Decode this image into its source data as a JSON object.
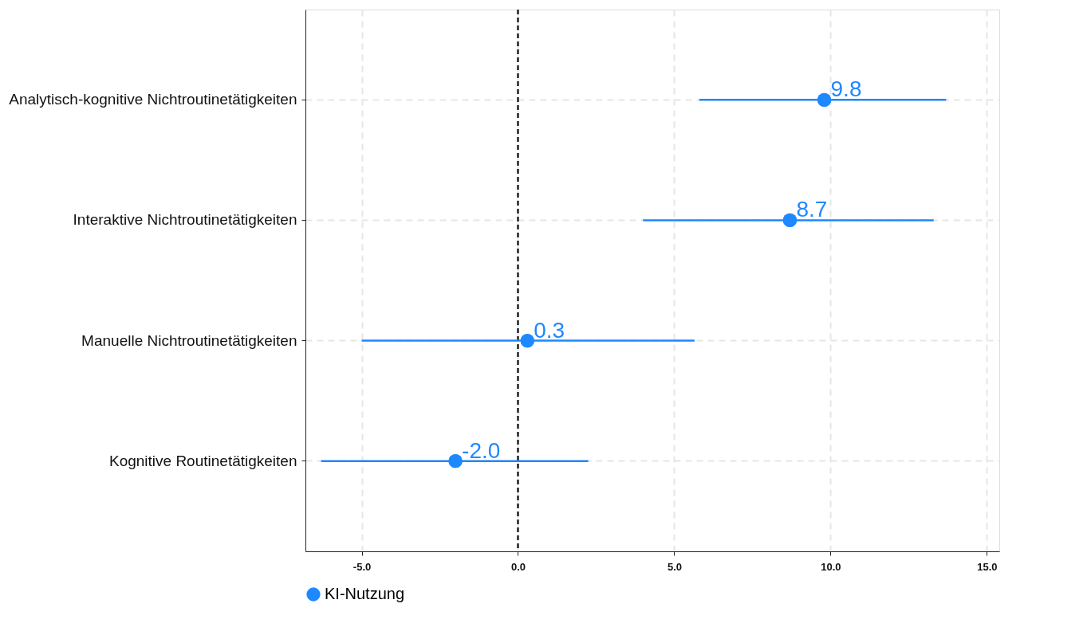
{
  "chart_data": {
    "type": "scatter",
    "orientation": "horizontal",
    "categories": [
      "Analytisch-kognitive Nichtroutinetätigkeiten",
      "Interaktive Nichtroutinetätigkeiten",
      "Manuelle Nichtroutinetätigkeiten",
      "Kognitive Routinetätigkeiten"
    ],
    "series": [
      {
        "name": "KI-Nutzung",
        "color": "#1e88ff",
        "values": [
          9.8,
          8.7,
          0.3,
          -2.0
        ],
        "errors": [
          [
            5.8,
            13.7
          ],
          [
            4.0,
            13.3
          ],
          [
            -5.0,
            5.65
          ],
          [
            -6.3,
            2.25
          ]
        ],
        "value_labels": [
          "9.8",
          "8.7",
          "0.3",
          "-2.0"
        ]
      }
    ],
    "xlim": [
      -6.8,
      15.4
    ],
    "xticks": [
      {
        "value": -5,
        "label": "-5.0"
      },
      {
        "value": 0,
        "label": "0.0"
      },
      {
        "value": 5,
        "label": "5.0"
      },
      {
        "value": 10,
        "label": "10.0"
      },
      {
        "value": 15,
        "label": "15.0"
      }
    ],
    "ref_lines": [
      {
        "axis": "x",
        "value": 0,
        "color": "#222222",
        "line_style": "dashed"
      }
    ],
    "grid": true,
    "legend": "bottom",
    "marker": "circle"
  }
}
